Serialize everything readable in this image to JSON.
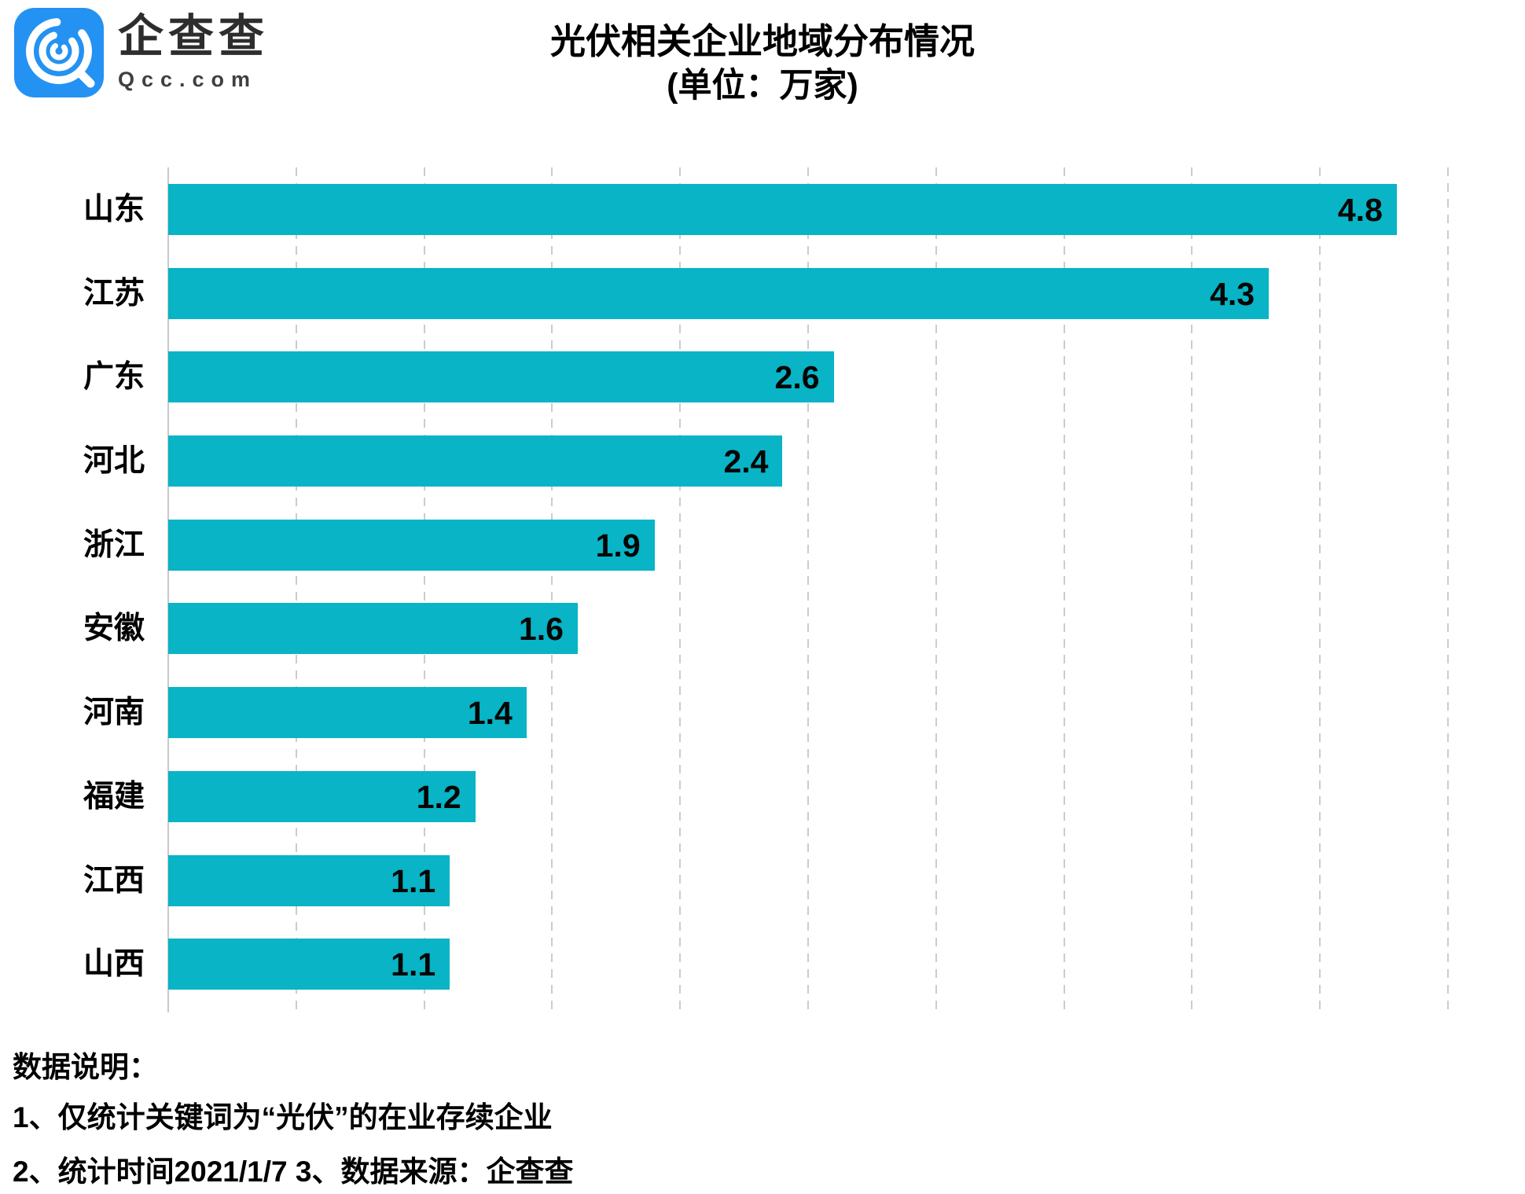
{
  "logo": {
    "name": "企查查",
    "domain": "Qcc.com",
    "icon_color": "#2492f2"
  },
  "title": {
    "line1": "光伏相关企业地域分布情况",
    "line2": "(单位：万家)"
  },
  "chart_data": {
    "type": "bar",
    "orientation": "horizontal",
    "title": "光伏相关企业地域分布情况",
    "subtitle": "(单位：万家)",
    "unit": "万家",
    "categories": [
      "山东",
      "江苏",
      "广东",
      "河北",
      "浙江",
      "安徽",
      "河南",
      "福建",
      "江西",
      "山西"
    ],
    "values": [
      4.8,
      4.3,
      2.6,
      2.4,
      1.9,
      1.6,
      1.4,
      1.2,
      1.1,
      1.1
    ],
    "xlim": [
      0,
      5
    ],
    "grid_step": 0.5,
    "grid": true,
    "value_label_position": "inside-end",
    "bar_color": "#08b4c5",
    "gridline_color": "#cccccc",
    "label_color": "#000000"
  },
  "footnotes": {
    "heading": "数据说明：",
    "note1": "1、仅统计关键词为“光伏”的在业存续企业",
    "note2": "2、统计时间2021/1/7  3、数据来源：企查查"
  }
}
